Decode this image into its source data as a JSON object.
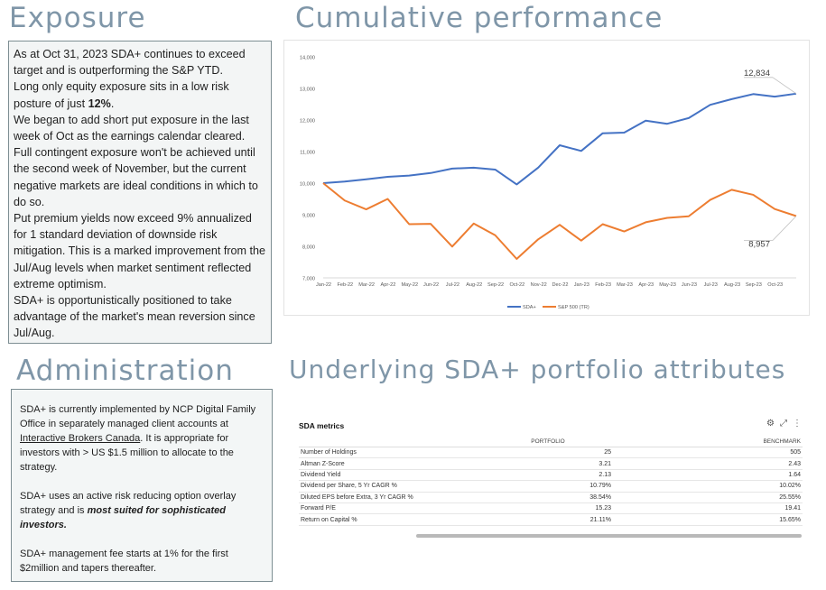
{
  "headings": {
    "exposure": "Exposure",
    "cumulative": "Cumulative performance",
    "administration": "Administration",
    "attributes": "Underlying SDA+ portfolio attributes"
  },
  "exposure": {
    "paragraphs": [
      "As at Oct 31, 2023 SDA+ continues to exceed target and is outperforming the S&P YTD.",
      "Long only equity exposure sits in a low risk posture of just ",
      "We began to add short put exposure in the last week of Oct as the earnings calendar cleared.",
      "Full contingent exposure won't be achieved until the second week of November, but the current negative markets are ideal conditions in which to do so.",
      "Put premium yields now exceed 9% annualized for 1 standard deviation of downside risk mitigation. This is a marked improvement from the Jul/Aug levels when market sentiment reflected extreme optimism.",
      "SDA+ is opportunistically positioned to take advantage of the market's mean reversion since Jul/Aug."
    ],
    "equity_pct": "12%",
    "equity_end": "."
  },
  "administration": {
    "p1_before": "SDA+ is currently implemented by NCP Digital Family Office in separately managed client accounts at ",
    "p1_link": "Interactive Brokers Canada",
    "p1_after": ".  It is appropriate for investors with > US $1.5 million to allocate to the strategy.",
    "p2_before": "SDA+ uses an active risk reducing option overlay strategy and is ",
    "p2_emph": "most suited for sophisticated investors.",
    "p3": "SDA+ management fee starts at 1% for the first $2million and tapers thereafter."
  },
  "chart_data": {
    "type": "line",
    "categories": [
      "Jan-22",
      "Feb-22",
      "Mar-22",
      "Apr-22",
      "May-22",
      "Jun-22",
      "Jul-22",
      "Aug-22",
      "Sep-22",
      "Oct-22",
      "Nov-22",
      "Dec-22",
      "Jan-23",
      "Feb-23",
      "Mar-23",
      "Apr-23",
      "May-23",
      "Jun-23",
      "Jul-23",
      "Aug-23",
      "Sep-23",
      "Oct-23"
    ],
    "x": [
      "Dec-21",
      "Jan-22",
      "Feb-22",
      "Mar-22",
      "Apr-22",
      "May-22",
      "Jun-22",
      "Jul-22",
      "Aug-22",
      "Sep-22",
      "Oct-22",
      "Nov-22",
      "Dec-22",
      "Jan-23",
      "Feb-23",
      "Mar-23",
      "Apr-23",
      "May-23",
      "Jun-23",
      "Jul-23",
      "Aug-23",
      "Sep-23",
      "Oct-23"
    ],
    "series": [
      {
        "name": "SDA+",
        "color": "#4472c4",
        "values": [
          10000,
          10050,
          10120,
          10200,
          10240,
          10320,
          10460,
          10490,
          10430,
          9960,
          10490,
          11200,
          11020,
          11580,
          11600,
          11980,
          11880,
          12060,
          12480,
          12660,
          12820,
          12740,
          12834
        ]
      },
      {
        "name": "S&P 500 (TR)",
        "color": "#ed7d31",
        "values": [
          10000,
          9450,
          9170,
          9500,
          8700,
          8710,
          7990,
          8720,
          8350,
          7600,
          8220,
          8680,
          8180,
          8700,
          8470,
          8760,
          8900,
          8950,
          9470,
          9790,
          9630,
          9180,
          8957
        ]
      }
    ],
    "annotations": [
      "12,834",
      "8,957"
    ],
    "y_ticks": [
      "7,000",
      "8,000",
      "9,000",
      "10,000",
      "11,000",
      "12,000",
      "13,000",
      "14,000"
    ],
    "ylim": [
      7000,
      14000
    ],
    "grid": false,
    "legend": "bottom"
  },
  "metrics": {
    "title": "SDA metrics",
    "icons": [
      "gear-icon",
      "expand-icon",
      "more-vertical-icon"
    ],
    "columns": [
      "",
      "PORTFOLIO",
      "BENCHMARK"
    ],
    "rows": [
      [
        "Number of Holdings",
        "25",
        "505"
      ],
      [
        "Altman Z-Score",
        "3.21",
        "2.43"
      ],
      [
        "Dividend Yield",
        "2.13",
        "1.64"
      ],
      [
        "Dividend per Share, 5 Yr CAGR %",
        "10.79%",
        "10.02%"
      ],
      [
        "Diluted EPS before Extra, 3 Yr CAGR %",
        "38.54%",
        "25.55%"
      ],
      [
        "Forward P/E",
        "15.23",
        "19.41"
      ],
      [
        "Return on Capital %",
        "21.11%",
        "15.65%"
      ]
    ]
  }
}
